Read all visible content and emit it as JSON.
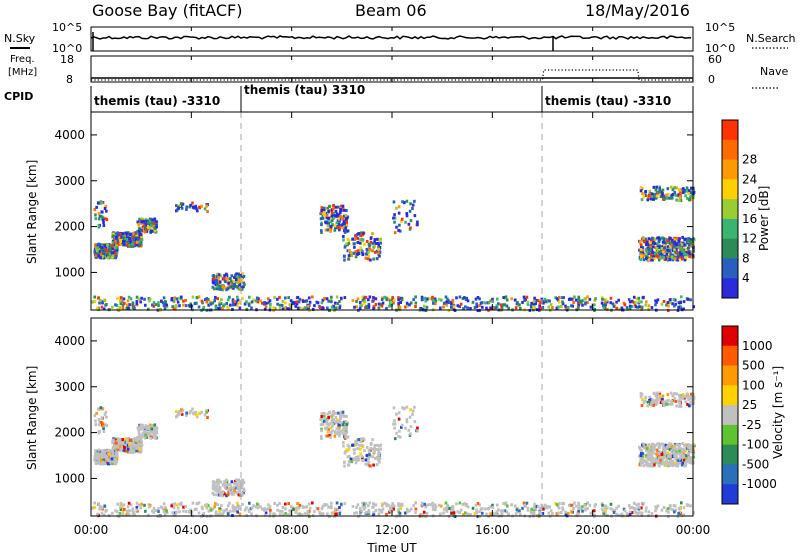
{
  "header": {
    "station": "Goose Bay (fitACF)",
    "beam": "Beam 06",
    "date": "18/May/2016"
  },
  "labels": {
    "nsky": "N.Sky",
    "freq_line1": "Freq.",
    "freq_line2": "[MHz]",
    "cpid": "CPID",
    "nsearch": "N.Search",
    "nave": "Nave",
    "time_axis": "Time UT"
  },
  "colors": {
    "power_scale": [
      "#2b2bdc",
      "#2a5fc0",
      "#2e8b57",
      "#3cb371",
      "#9acd32",
      "#ffd000",
      "#ff9900",
      "#ff6a00",
      "#ff3300"
    ],
    "velocity_scale": [
      "#1f3cd6",
      "#2a6fb8",
      "#2e8b57",
      "#5fc22f",
      "#c0c0c0",
      "#ffd200",
      "#ff9a00",
      "#ff5a00",
      "#e00000"
    ]
  },
  "chart_data": [
    {
      "type": "line",
      "name": "nsky-panel",
      "y_ticks": [
        "10^5",
        "10^0"
      ],
      "right_ticks": [
        "10^5",
        "10^0"
      ],
      "series": [
        {
          "name": "N.Sky"
        },
        {
          "name": "N.Search"
        }
      ],
      "x_ticks": [
        "00:00",
        "04:00",
        "08:00",
        "12:00",
        "16:00",
        "20:00",
        "00:00"
      ]
    },
    {
      "type": "line",
      "name": "freq-panel",
      "ylabel": "Freq. [MHz]",
      "y_ticks": [
        18,
        8
      ],
      "right_ticks": [
        60,
        0
      ],
      "series": [
        {
          "name": "Freq",
          "x": [
            0,
            24
          ],
          "y": [
            10,
            10
          ]
        },
        {
          "name": "Nave",
          "x": [
            0,
            18,
            18.05,
            21.8,
            21.85,
            24
          ],
          "y": [
            10,
            10,
            15,
            15,
            10,
            10
          ]
        }
      ]
    },
    {
      "type": "table",
      "name": "cpid-row",
      "segments": [
        {
          "start": 0,
          "label": "themis (tau) -3310"
        },
        {
          "start": 6,
          "label": "themis (tau) 3310"
        },
        {
          "start": 18,
          "label": "themis (tau) -3310"
        }
      ]
    },
    {
      "type": "heatmap",
      "name": "power-panel",
      "ylabel": "Slant Range [km]",
      "colorbar_label": "Power [dB]",
      "colorbar_ticks": [
        4,
        8,
        12,
        16,
        20,
        24,
        28
      ],
      "y_ticks": [
        1000,
        2000,
        3000,
        4000
      ],
      "xlim": [
        0,
        24
      ],
      "ylim": [
        180,
        4500
      ],
      "dashed_lines_x": [
        6,
        18
      ]
    },
    {
      "type": "heatmap",
      "name": "velocity-panel",
      "ylabel": "Slant Range [km]",
      "colorbar_label": "Velocity [m s⁻¹]",
      "colorbar_ticks": [
        "1000",
        "500",
        "100",
        "25",
        "-25",
        "-100",
        "-500",
        "-1000"
      ],
      "y_ticks": [
        1000,
        2000,
        3000,
        4000
      ],
      "xlim": [
        0,
        24
      ],
      "ylim": [
        180,
        4500
      ],
      "dashed_lines_x": [
        6,
        18
      ],
      "x_ticks": [
        "00:00",
        "04:00",
        "08:00",
        "12:00",
        "16:00",
        "20:00",
        "00:00"
      ],
      "xlabel": "Time UT"
    }
  ]
}
